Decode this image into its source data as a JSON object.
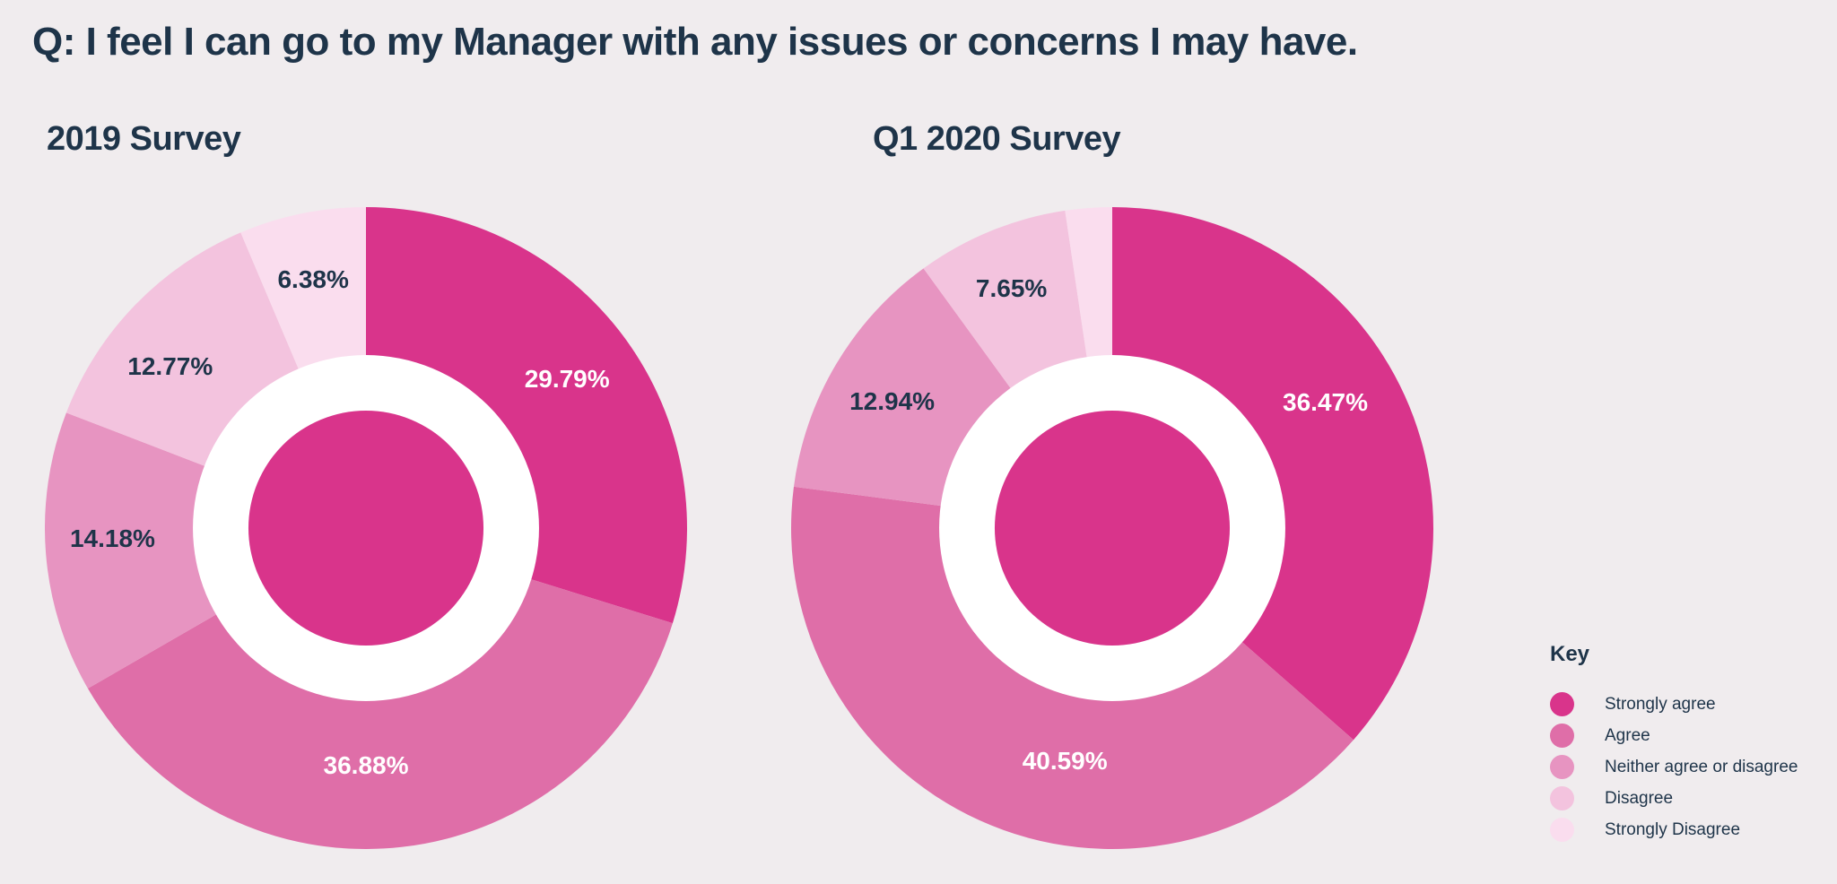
{
  "title": "Q: I feel I can go to my Manager with any issues or concerns I may have.",
  "colors": {
    "background": "#F0ECEE",
    "text": "#1E3449",
    "hole": "#FFFFFF",
    "center_disc": "#D9348B"
  },
  "categories": [
    {
      "name": "Strongly agree",
      "color": "#D9348B",
      "label_color": "#FFFFFF"
    },
    {
      "name": "Agree",
      "color": "#DF6EA8",
      "label_color": "#FFFFFF"
    },
    {
      "name": "Neither agree or disagree",
      "color": "#E794C1",
      "label_color": "#1E3449"
    },
    {
      "name": "Disagree",
      "color": "#F3C3DE",
      "label_color": "#1E3449"
    },
    {
      "name": "Strongly Disagree",
      "color": "#FADDEE",
      "label_color": "#1E3449"
    }
  ],
  "legend": {
    "title": "Key"
  },
  "chart_data": [
    {
      "type": "pie",
      "donut": true,
      "title": "2019 Survey",
      "start_angle_deg": 0,
      "direction": "clockwise",
      "hole_radius_fraction": 0.539,
      "center_disc_radius_fraction": 0.366,
      "slices": [
        {
          "category": "Strongly agree",
          "value": 29.79,
          "label": "29.79%",
          "label_angle": 53.4,
          "label_radius": 0.78
        },
        {
          "category": "Agree",
          "value": 36.88,
          "label": "36.88%",
          "label_angle": 180.0,
          "label_radius": 0.74
        },
        {
          "category": "Neither agree or disagree",
          "value": 14.18,
          "label": "14.18%",
          "label_angle": 267.5,
          "label_radius": 0.79
        },
        {
          "category": "Disagree",
          "value": 12.77,
          "label": "12.77%",
          "label_angle": 309.5,
          "label_radius": 0.79
        },
        {
          "category": "Strongly Disagree",
          "value": 6.38,
          "label": "6.38%",
          "label_angle": 348.0,
          "label_radius": 0.79
        }
      ]
    },
    {
      "type": "pie",
      "donut": true,
      "title": "Q1 2020 Survey",
      "start_angle_deg": 0,
      "direction": "clockwise",
      "hole_radius_fraction": 0.539,
      "center_disc_radius_fraction": 0.366,
      "slices": [
        {
          "category": "Strongly agree",
          "value": 36.47,
          "label": "36.47%",
          "label_angle": 59.5,
          "label_radius": 0.77
        },
        {
          "category": "Agree",
          "value": 40.59,
          "label": "40.59%",
          "label_angle": 191.5,
          "label_radius": 0.74
        },
        {
          "category": "Neither agree or disagree",
          "value": 12.94,
          "label": "12.94%",
          "label_angle": 299.8,
          "label_radius": 0.79
        },
        {
          "category": "Disagree",
          "value": 7.65,
          "label": "7.65%",
          "label_angle": 337.2,
          "label_radius": 0.81
        },
        {
          "category": "Strongly Disagree",
          "value": 2.35,
          "label": null,
          "label_angle": 355.8,
          "label_radius": 0.79
        }
      ]
    }
  ]
}
